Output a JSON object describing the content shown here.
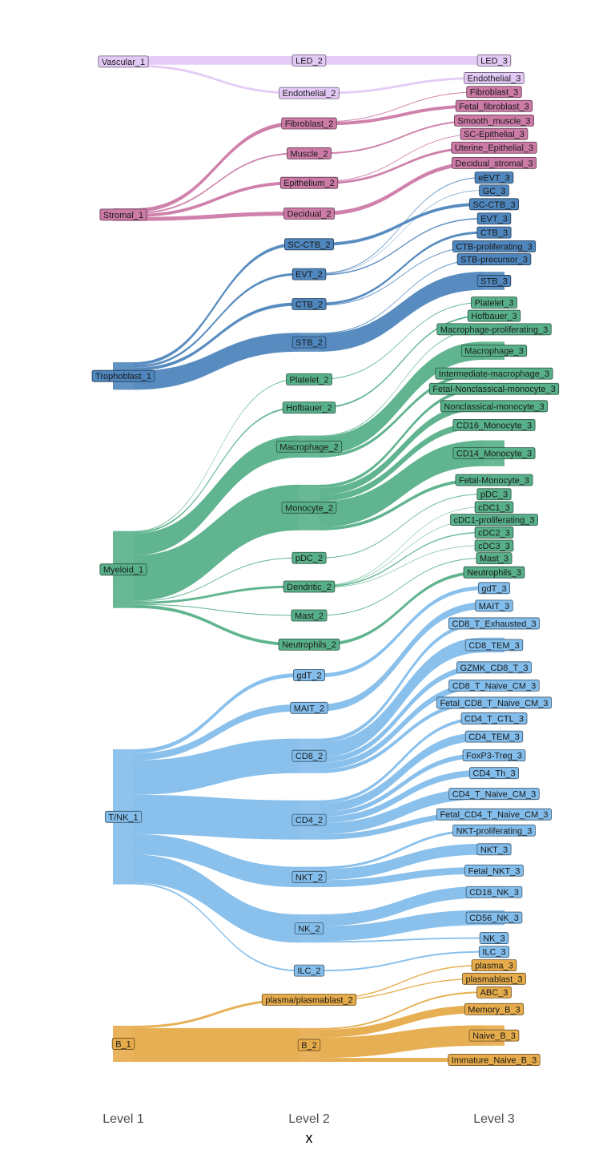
{
  "chart_data": {
    "type": "sankey",
    "xlabel": "x",
    "axis_ticks": [
      "Level 1",
      "Level 2",
      "Level 3"
    ],
    "colors": {
      "Vascular": "#e3c9f5",
      "Stromal": "#cc7aa6",
      "Trophoblast": "#4f86bd",
      "Myeloid": "#58b08a",
      "TNK": "#83bdeb",
      "B": "#e6ab4a"
    },
    "level1": [
      {
        "name": "Vascular_1",
        "value": 1.4,
        "group": "Vascular"
      },
      {
        "name": "Stromal_1",
        "value": 1.6,
        "group": "Stromal"
      },
      {
        "name": "Trophoblast_1",
        "value": 3.5,
        "group": "Trophoblast"
      },
      {
        "name": "Myeloid_1",
        "value": 9.8,
        "group": "Myeloid"
      },
      {
        "name": "T/NK_1",
        "value": 17.2,
        "group": "TNK"
      },
      {
        "name": "B_1",
        "value": 4.6,
        "group": "B"
      }
    ],
    "level2": [
      {
        "name": "LED_2",
        "value": 1.1,
        "parent": "Vascular_1",
        "group": "Vascular"
      },
      {
        "name": "Endothelial_2",
        "value": 0.3,
        "parent": "Vascular_1",
        "group": "Vascular"
      },
      {
        "name": "Fibroblast_2",
        "value": 0.5,
        "parent": "Stromal_1",
        "group": "Stromal"
      },
      {
        "name": "Muscle_2",
        "value": 0.2,
        "parent": "Stromal_1",
        "group": "Stromal"
      },
      {
        "name": "Epithelium_2",
        "value": 0.4,
        "parent": "Stromal_1",
        "group": "Stromal"
      },
      {
        "name": "Decidual_2",
        "value": 0.5,
        "parent": "Stromal_1",
        "group": "Stromal"
      },
      {
        "name": "SC-CTB_2",
        "value": 0.4,
        "parent": "Trophoblast_1",
        "group": "Trophoblast"
      },
      {
        "name": "EVT_2",
        "value": 0.3,
        "parent": "Trophoblast_1",
        "group": "Trophoblast"
      },
      {
        "name": "CTB_2",
        "value": 0.4,
        "parent": "Trophoblast_1",
        "group": "Trophoblast"
      },
      {
        "name": "STB_2",
        "value": 2.4,
        "parent": "Trophoblast_1",
        "group": "Trophoblast"
      },
      {
        "name": "Platelet_2",
        "value": 0.1,
        "parent": "Myeloid_1",
        "group": "Myeloid"
      },
      {
        "name": "Hofbauer_2",
        "value": 0.2,
        "parent": "Myeloid_1",
        "group": "Myeloid"
      },
      {
        "name": "Macrophage_2",
        "value": 2.8,
        "parent": "Myeloid_1",
        "group": "Myeloid"
      },
      {
        "name": "Monocyte_2",
        "value": 5.8,
        "parent": "Myeloid_1",
        "group": "Myeloid"
      },
      {
        "name": "pDC_2",
        "value": 0.1,
        "parent": "Myeloid_1",
        "group": "Myeloid"
      },
      {
        "name": "Dendritic_2",
        "value": 0.3,
        "parent": "Myeloid_1",
        "group": "Myeloid"
      },
      {
        "name": "Mast_2",
        "value": 0.1,
        "parent": "Myeloid_1",
        "group": "Myeloid"
      },
      {
        "name": "Neutrophils_2",
        "value": 0.4,
        "parent": "Myeloid_1",
        "group": "Myeloid"
      },
      {
        "name": "gdT_2",
        "value": 0.5,
        "parent": "T/NK_1",
        "group": "TNK"
      },
      {
        "name": "MAIT_2",
        "value": 0.9,
        "parent": "T/NK_1",
        "group": "TNK"
      },
      {
        "name": "CD8_2",
        "value": 4.4,
        "parent": "T/NK_1",
        "group": "TNK"
      },
      {
        "name": "CD4_2",
        "value": 5.0,
        "parent": "T/NK_1",
        "group": "TNK"
      },
      {
        "name": "NKT_2",
        "value": 2.6,
        "parent": "T/NK_1",
        "group": "TNK"
      },
      {
        "name": "NK_2",
        "value": 3.6,
        "parent": "T/NK_1",
        "group": "TNK"
      },
      {
        "name": "ILC_2",
        "value": 0.2,
        "parent": "T/NK_1",
        "group": "TNK"
      },
      {
        "name": "plasma/plasmablast_2",
        "value": 0.3,
        "parent": "B_1",
        "group": "B"
      },
      {
        "name": "B_2",
        "value": 4.3,
        "parent": "B_1",
        "group": "B"
      }
    ],
    "level3": [
      {
        "name": "LED_3",
        "value": 1.1,
        "parent": "LED_2",
        "group": "Vascular"
      },
      {
        "name": "Endothelial_3",
        "value": 0.3,
        "parent": "Endothelial_2",
        "group": "Vascular"
      },
      {
        "name": "Fibroblast_3",
        "value": 0.1,
        "parent": "Fibroblast_2",
        "group": "Stromal"
      },
      {
        "name": "Fetal_fibroblast_3",
        "value": 0.4,
        "parent": "Fibroblast_2",
        "group": "Stromal"
      },
      {
        "name": "Smooth_muscle_3",
        "value": 0.2,
        "parent": "Muscle_2",
        "group": "Stromal"
      },
      {
        "name": "SC-Epithelial_3",
        "value": 0.1,
        "parent": "Epithelium_2",
        "group": "Stromal"
      },
      {
        "name": "Uterine_Epithelial_3",
        "value": 0.3,
        "parent": "Epithelium_2",
        "group": "Stromal"
      },
      {
        "name": "Decidual_stromal_3",
        "value": 0.5,
        "parent": "Decidual_2",
        "group": "Stromal"
      },
      {
        "name": "eEVT_3",
        "value": 0.1,
        "parent": "EVT_2",
        "group": "Trophoblast"
      },
      {
        "name": "GC_3",
        "value": 0.05,
        "parent": "EVT_2",
        "group": "Trophoblast"
      },
      {
        "name": "SC-CTB_3",
        "value": 0.4,
        "parent": "SC-CTB_2",
        "group": "Trophoblast"
      },
      {
        "name": "EVT_3",
        "value": 0.15,
        "parent": "EVT_2",
        "group": "Trophoblast"
      },
      {
        "name": "CTB_3",
        "value": 0.3,
        "parent": "CTB_2",
        "group": "Trophoblast"
      },
      {
        "name": "CTB-proliferating_3",
        "value": 0.1,
        "parent": "CTB_2",
        "group": "Trophoblast"
      },
      {
        "name": "STB-precursor_3",
        "value": 0.1,
        "parent": "STB_2",
        "group": "Trophoblast"
      },
      {
        "name": "STB_3",
        "value": 2.3,
        "parent": "STB_2",
        "group": "Trophoblast"
      },
      {
        "name": "Platelet_3",
        "value": 0.1,
        "parent": "Platelet_2",
        "group": "Myeloid"
      },
      {
        "name": "Hofbauer_3",
        "value": 0.2,
        "parent": "Hofbauer_2",
        "group": "Myeloid"
      },
      {
        "name": "Macrophage-proliferating_3",
        "value": 0.1,
        "parent": "Macrophage_2",
        "group": "Myeloid"
      },
      {
        "name": "Macrophage_3",
        "value": 2.3,
        "parent": "Macrophage_2",
        "group": "Myeloid"
      },
      {
        "name": "Intermediate-macrophage_3",
        "value": 0.4,
        "parent": "Macrophage_2",
        "group": "Myeloid"
      },
      {
        "name": "Fetal-Nonclassical-monocyte_3",
        "value": 0.4,
        "parent": "Monocyte_2",
        "group": "Myeloid"
      },
      {
        "name": "Nonclassical-monocyte_3",
        "value": 0.9,
        "parent": "Monocyte_2",
        "group": "Myeloid"
      },
      {
        "name": "CD16_Monocyte_3",
        "value": 0.8,
        "parent": "Monocyte_2",
        "group": "Myeloid"
      },
      {
        "name": "CD14_Monocyte_3",
        "value": 3.3,
        "parent": "Monocyte_2",
        "group": "Myeloid"
      },
      {
        "name": "Fetal-Monocyte_3",
        "value": 0.4,
        "parent": "Monocyte_2",
        "group": "Myeloid"
      },
      {
        "name": "pDC_3",
        "value": 0.1,
        "parent": "pDC_2",
        "group": "Myeloid"
      },
      {
        "name": "cDC1_3",
        "value": 0.05,
        "parent": "Dendritic_2",
        "group": "Myeloid"
      },
      {
        "name": "cDC1-proliferating_3",
        "value": 0.05,
        "parent": "Dendritic_2",
        "group": "Myeloid"
      },
      {
        "name": "cDC2_3",
        "value": 0.15,
        "parent": "Dendritic_2",
        "group": "Myeloid"
      },
      {
        "name": "cDC3_3",
        "value": 0.05,
        "parent": "Dendritic_2",
        "group": "Myeloid"
      },
      {
        "name": "Mast_3",
        "value": 0.1,
        "parent": "Mast_2",
        "group": "Myeloid"
      },
      {
        "name": "Neutrophils_3",
        "value": 0.4,
        "parent": "Neutrophils_2",
        "group": "Myeloid"
      },
      {
        "name": "gdT_3",
        "value": 0.5,
        "parent": "gdT_2",
        "group": "TNK"
      },
      {
        "name": "MAIT_3",
        "value": 0.9,
        "parent": "MAIT_2",
        "group": "TNK"
      },
      {
        "name": "CD8_T_Exhausted_3",
        "value": 0.5,
        "parent": "CD8_2",
        "group": "TNK"
      },
      {
        "name": "CD8_TEM_3",
        "value": 1.9,
        "parent": "CD8_2",
        "group": "TNK"
      },
      {
        "name": "GZMK_CD8_T_3",
        "value": 0.7,
        "parent": "CD8_2",
        "group": "TNK"
      },
      {
        "name": "CD8_T_Naive_CM_3",
        "value": 0.8,
        "parent": "CD8_2",
        "group": "TNK"
      },
      {
        "name": "Fetal_CD8_T_Naive_CM_3",
        "value": 0.5,
        "parent": "CD8_2",
        "group": "TNK"
      },
      {
        "name": "CD4_T_CTL_3",
        "value": 0.4,
        "parent": "CD4_2",
        "group": "TNK"
      },
      {
        "name": "CD4_TEM_3",
        "value": 1.1,
        "parent": "CD4_2",
        "group": "TNK"
      },
      {
        "name": "FoxP3-Treg_3",
        "value": 0.6,
        "parent": "CD4_2",
        "group": "TNK"
      },
      {
        "name": "CD4_Th_3",
        "value": 0.8,
        "parent": "CD4_2",
        "group": "TNK"
      },
      {
        "name": "CD4_T_Naive_CM_3",
        "value": 1.4,
        "parent": "CD4_2",
        "group": "TNK"
      },
      {
        "name": "Fetal_CD4_T_Naive_CM_3",
        "value": 0.7,
        "parent": "CD4_2",
        "group": "TNK"
      },
      {
        "name": "NKT-proliferating_3",
        "value": 0.3,
        "parent": "NKT_2",
        "group": "TNK"
      },
      {
        "name": "NKT_3",
        "value": 1.4,
        "parent": "NKT_2",
        "group": "TNK"
      },
      {
        "name": "Fetal_NKT_3",
        "value": 0.9,
        "parent": "NKT_2",
        "group": "TNK"
      },
      {
        "name": "CD16_NK_3",
        "value": 1.5,
        "parent": "NK_2",
        "group": "TNK"
      },
      {
        "name": "CD56_NK_3",
        "value": 1.9,
        "parent": "NK_2",
        "group": "TNK"
      },
      {
        "name": "NK_3",
        "value": 0.2,
        "parent": "NK_2",
        "group": "TNK"
      },
      {
        "name": "ILC_3",
        "value": 0.2,
        "parent": "ILC_2",
        "group": "TNK"
      },
      {
        "name": "plasma_3",
        "value": 0.15,
        "parent": "plasma/plasmablast_2",
        "group": "B"
      },
      {
        "name": "plasmablast_3",
        "value": 0.15,
        "parent": "plasma/plasmablast_2",
        "group": "B"
      },
      {
        "name": "ABC_3",
        "value": 0.2,
        "parent": "B_2",
        "group": "B"
      },
      {
        "name": "Memory_B_3",
        "value": 1.0,
        "parent": "B_2",
        "group": "B"
      },
      {
        "name": "Naive_B_3",
        "value": 2.6,
        "parent": "B_2",
        "group": "B"
      },
      {
        "name": "Immature_Naive_B_3",
        "value": 0.5,
        "parent": "B_2",
        "group": "B"
      }
    ]
  }
}
